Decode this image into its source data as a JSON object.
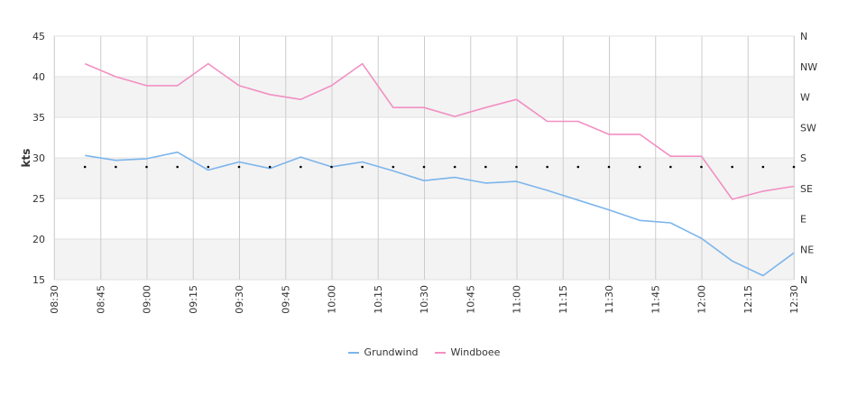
{
  "chart_data": {
    "type": "line",
    "x_ticks": [
      "08:30",
      "08:45",
      "09:00",
      "09:15",
      "09:30",
      "09:45",
      "10:00",
      "10:15",
      "10:30",
      "10:45",
      "11:00",
      "11:15",
      "11:30",
      "11:45",
      "12:00",
      "12:15",
      "12:30"
    ],
    "x_times": [
      "08:40",
      "08:50",
      "09:00",
      "09:10",
      "09:20",
      "09:30",
      "09:40",
      "09:50",
      "10:00",
      "10:10",
      "10:20",
      "10:30",
      "10:40",
      "10:50",
      "11:00",
      "11:10",
      "11:20",
      "11:30",
      "11:40",
      "11:50",
      "12:00",
      "12:10",
      "12:20",
      "12:30"
    ],
    "ylabel": "kts",
    "ylim": [
      15,
      45
    ],
    "y_ticks": [
      "15",
      "20",
      "25",
      "30",
      "35",
      "40",
      "45"
    ],
    "y2_ticks": [
      "N",
      "NE",
      "E",
      "SE",
      "S",
      "SW",
      "W",
      "NW",
      "N"
    ],
    "grid": true,
    "legend_position": "bottom",
    "series": [
      {
        "name": "Grundwind",
        "color": "#7cb5ec",
        "values": [
          30.3,
          29.7,
          29.9,
          30.7,
          28.5,
          29.5,
          28.7,
          30.1,
          28.9,
          29.5,
          28.4,
          27.2,
          27.6,
          26.9,
          27.1,
          26.0,
          24.8,
          23.6,
          22.3,
          22.0,
          20.1,
          17.3,
          15.5,
          18.3
        ]
      },
      {
        "name": "Windboee",
        "color": "#f28fc3",
        "values": [
          41.6,
          40.0,
          38.9,
          38.9,
          41.6,
          38.9,
          37.8,
          37.2,
          38.9,
          41.6,
          36.2,
          36.2,
          35.1,
          36.2,
          37.2,
          34.5,
          34.5,
          32.9,
          32.9,
          30.2,
          30.2,
          24.9,
          25.9,
          26.5
        ]
      }
    ],
    "direction": {
      "color": "#000000",
      "values": [
        "S",
        "S",
        "S",
        "S",
        "S",
        "S",
        "S",
        "S",
        "S",
        "S",
        "S",
        "S",
        "S",
        "S",
        "S",
        "S",
        "S",
        "S",
        "S",
        "S",
        "S",
        "S",
        "S",
        "S"
      ]
    }
  }
}
